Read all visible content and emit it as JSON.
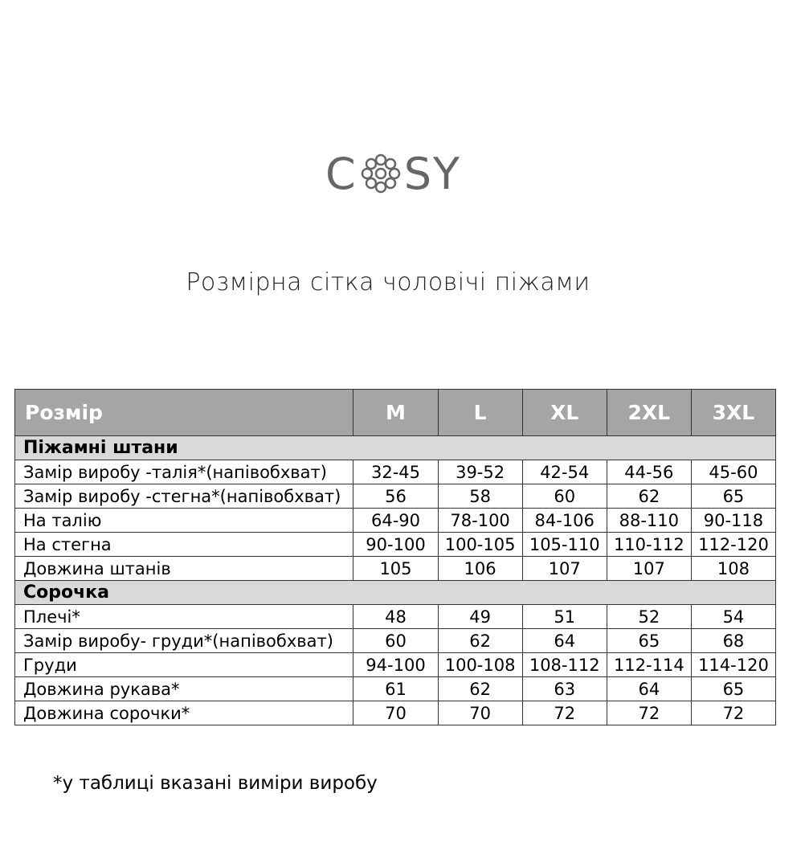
{
  "logo": {
    "text": "COSY",
    "left": "C",
    "right": "SY",
    "icon": "flower-o-icon",
    "color": "#666666"
  },
  "title": "Розмірна сітка чоловічі піжами",
  "table": {
    "header": [
      "Розмір",
      "M",
      "L",
      "XL",
      "2XL",
      "3XL"
    ],
    "header_bg": "#a5a5a5",
    "section_bg": "#d9d9d9",
    "sections": [
      {
        "title": "Піжамні штани",
        "rows": [
          {
            "label": "Замір виробу -талія*(напівобхват)",
            "values": [
              "32-45",
              "39-52",
              "42-54",
              "44-56",
              "45-60"
            ]
          },
          {
            "label": "Замір виробу -стегна*(напівобхват)",
            "values": [
              "56",
              "58",
              "60",
              "62",
              "65"
            ]
          },
          {
            "label": "На талію",
            "values": [
              "64-90",
              "78-100",
              "84-106",
              "88-110",
              "90-118"
            ]
          },
          {
            "label": "На стегна",
            "values": [
              "90-100",
              "100-105",
              "105-110",
              "110-112",
              "112-120"
            ]
          },
          {
            "label": "Довжина штанів",
            "values": [
              "105",
              "106",
              "107",
              "107",
              "108"
            ]
          }
        ]
      },
      {
        "title": "Сорочка",
        "rows": [
          {
            "label": "Плечі*",
            "values": [
              "48",
              "49",
              "51",
              "52",
              "54"
            ]
          },
          {
            "label": "Замір виробу- груди*(напівобхват)",
            "values": [
              "60",
              "62",
              "64",
              "65",
              "68"
            ]
          },
          {
            "label": "Груди",
            "values": [
              "94-100",
              "100-108",
              "108-112",
              "112-114",
              "114-120"
            ]
          },
          {
            "label": "Довжина рукава*",
            "values": [
              "61",
              "62",
              "63",
              "64",
              "65"
            ]
          },
          {
            "label": "Довжина сорочки*",
            "values": [
              "70",
              "70",
              "72",
              "72",
              "72"
            ]
          }
        ]
      }
    ]
  },
  "note": "*у таблиці вказані виміри виробу"
}
